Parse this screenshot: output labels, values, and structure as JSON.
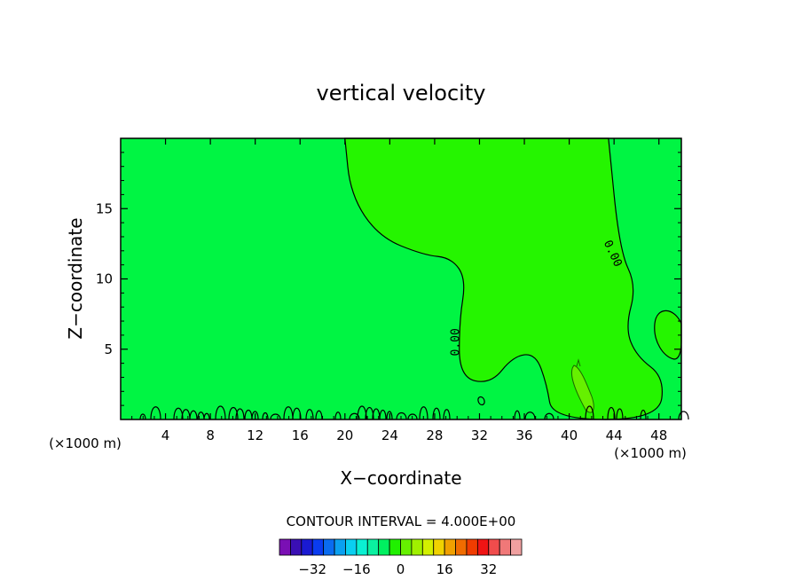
{
  "chart_data": {
    "type": "heatmap",
    "title": "vertical velocity",
    "xlabel": "X−coordinate",
    "ylabel": "Z−coordinate",
    "x_unit_left": "(×1000 m)",
    "x_unit_right": "(×1000 m)",
    "xlim": [
      0,
      50
    ],
    "ylim": [
      0,
      20
    ],
    "x_ticks": [
      4,
      8,
      12,
      16,
      20,
      24,
      28,
      32,
      36,
      40,
      44,
      48
    ],
    "x_tick_labels": [
      "4",
      "8",
      "12",
      "16",
      "20",
      "24",
      "28",
      "32",
      "36",
      "40",
      "44",
      "48"
    ],
    "y_ticks": [
      5,
      10,
      15
    ],
    "y_tick_labels": [
      "5",
      "10",
      "15"
    ],
    "contour_labels": [
      {
        "x": 30.2,
        "z": 5.5,
        "text": "0.00"
      },
      {
        "x": 43.6,
        "z": 11.7,
        "text": "0.00"
      }
    ],
    "zero_contour": [
      [
        20,
        20
      ],
      [
        20.5,
        16
      ],
      [
        23,
        13
      ],
      [
        27,
        11.7
      ],
      [
        29.5,
        11.5
      ],
      [
        30.8,
        10
      ],
      [
        30.2,
        7
      ],
      [
        30.2,
        3
      ],
      [
        33,
        2.5
      ],
      [
        35,
        4.5
      ],
      [
        37,
        4.7
      ],
      [
        38,
        2.5
      ],
      [
        38.5,
        0
      ],
      [
        48,
        0
      ],
      [
        48.5,
        3
      ],
      [
        46,
        4.5
      ],
      [
        45,
        6.5
      ],
      [
        46,
        9.5
      ],
      [
        44.5,
        12
      ],
      [
        43.5,
        20
      ]
    ],
    "contour_interval": "CONTOUR INTERVAL = 4.000E+00",
    "colorbar": {
      "tick_labels": [
        "−32",
        "−16",
        "0",
        "16",
        "32"
      ],
      "tick_values": [
        -32,
        -16,
        0,
        16,
        32
      ],
      "colors": [
        "#7a0fb4",
        "#3a0fb4",
        "#1a1ad2",
        "#0a3cf0",
        "#0a6cf0",
        "#0aa0f0",
        "#0acff0",
        "#0af0d2",
        "#0af0a0",
        "#00f060",
        "#20f000",
        "#66f000",
        "#a0f000",
        "#d2f000",
        "#f0d200",
        "#f0a000",
        "#f06c00",
        "#f03c00",
        "#f01414",
        "#f04c4c",
        "#f07878",
        "#f0a0a0"
      ]
    }
  }
}
